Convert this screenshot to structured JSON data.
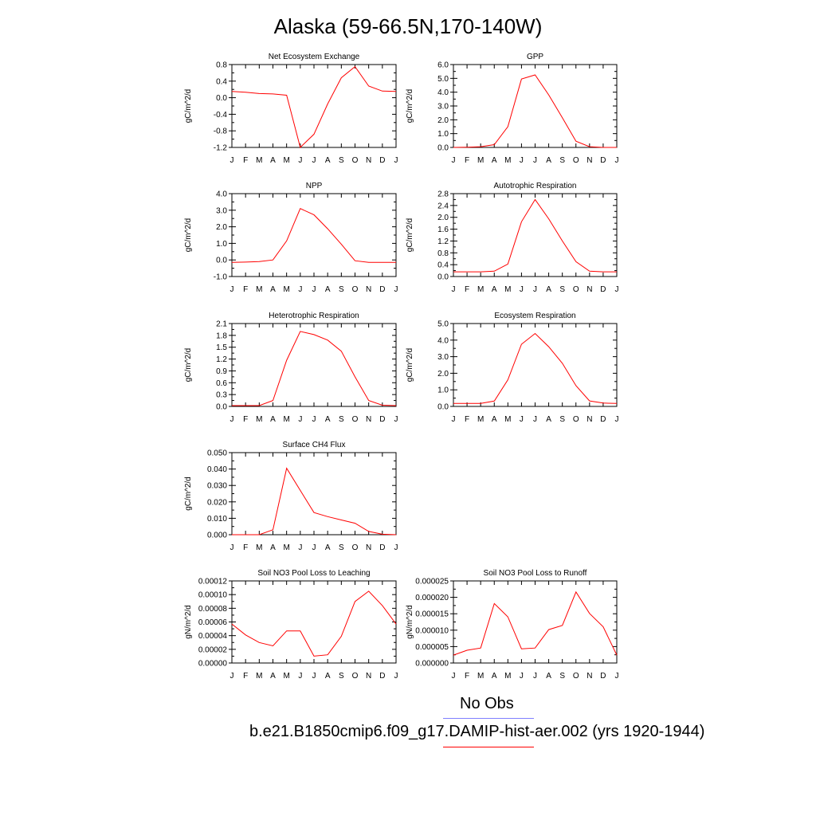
{
  "title": "Alaska (59-66.5N,170-140W)",
  "legend": {
    "obs_label": "No Obs",
    "obs_color": "#8080ff",
    "model_label": "b.e21.B1850cmip6.f09_g17.DAMIP-hist-aer.002 (yrs 1920-1944)",
    "model_color": "#ff0000"
  },
  "chart_data": [
    {
      "type": "line",
      "title": "Net Ecosystem Exchange",
      "ylabel": "gC/m^2/d",
      "x": [
        "J",
        "F",
        "M",
        "A",
        "M",
        "J",
        "J",
        "A",
        "S",
        "O",
        "N",
        "D",
        "J"
      ],
      "ylim": [
        -1.2,
        0.8
      ],
      "yticks": [
        "-1.2",
        "-0.8",
        "-0.4",
        "0.0",
        "0.4",
        "0.8"
      ],
      "series": [
        {
          "values": [
            0.15,
            0.13,
            0.1,
            0.09,
            0.06,
            -1.2,
            -0.88,
            -0.15,
            0.48,
            0.75,
            0.28,
            0.16,
            0.15
          ]
        }
      ]
    },
    {
      "type": "line",
      "title": "GPP",
      "ylabel": "gC/m^2/d",
      "x": [
        "J",
        "F",
        "M",
        "A",
        "M",
        "J",
        "J",
        "A",
        "S",
        "O",
        "N",
        "D",
        "J"
      ],
      "ylim": [
        0.0,
        6.0
      ],
      "yticks": [
        "0.0",
        "1.0",
        "2.0",
        "3.0",
        "4.0",
        "5.0",
        "6.0"
      ],
      "series": [
        {
          "values": [
            0.0,
            0.02,
            0.05,
            0.2,
            1.5,
            4.95,
            5.25,
            3.8,
            2.15,
            0.45,
            0.05,
            0.0,
            0.0
          ]
        }
      ]
    },
    {
      "type": "line",
      "title": "NPP",
      "ylabel": "gC/m^2/d",
      "x": [
        "J",
        "F",
        "M",
        "A",
        "M",
        "J",
        "J",
        "A",
        "S",
        "O",
        "N",
        "D",
        "J"
      ],
      "ylim": [
        -1.0,
        4.0
      ],
      "yticks": [
        "-1.0",
        "0.0",
        "1.0",
        "2.0",
        "3.0",
        "4.0"
      ],
      "series": [
        {
          "values": [
            -0.15,
            -0.13,
            -0.1,
            0.0,
            1.15,
            3.1,
            2.72,
            1.88,
            0.95,
            -0.05,
            -0.15,
            -0.15,
            -0.15
          ]
        }
      ]
    },
    {
      "type": "line",
      "title": "Autotrophic Respiration",
      "ylabel": "gC/m^2/d",
      "x": [
        "J",
        "F",
        "M",
        "A",
        "M",
        "J",
        "J",
        "A",
        "S",
        "O",
        "N",
        "D",
        "J"
      ],
      "ylim": [
        0.0,
        2.8
      ],
      "yticks": [
        "0.0",
        "0.4",
        "0.8",
        "1.2",
        "1.6",
        "2.0",
        "2.4",
        "2.8"
      ],
      "series": [
        {
          "values": [
            0.16,
            0.16,
            0.16,
            0.18,
            0.42,
            1.85,
            2.6,
            1.95,
            1.2,
            0.5,
            0.18,
            0.16,
            0.16
          ]
        }
      ]
    },
    {
      "type": "line",
      "title": "Heterotrophic Respiration",
      "ylabel": "gC/m^2/d",
      "x": [
        "J",
        "F",
        "M",
        "A",
        "M",
        "J",
        "J",
        "A",
        "S",
        "O",
        "N",
        "D",
        "J"
      ],
      "ylim": [
        0.0,
        2.1
      ],
      "yticks": [
        "0.0",
        "0.3",
        "0.6",
        "0.9",
        "1.2",
        "1.5",
        "1.8",
        "2.1"
      ],
      "series": [
        {
          "values": [
            0.02,
            0.02,
            0.02,
            0.15,
            1.17,
            1.9,
            1.82,
            1.68,
            1.4,
            0.75,
            0.15,
            0.03,
            0.02
          ]
        }
      ]
    },
    {
      "type": "line",
      "title": "Ecosystem Respiration",
      "ylabel": "gC/m^2/d",
      "x": [
        "J",
        "F",
        "M",
        "A",
        "M",
        "J",
        "J",
        "A",
        "S",
        "O",
        "N",
        "D",
        "J"
      ],
      "ylim": [
        0.0,
        5.0
      ],
      "yticks": [
        "0.0",
        "1.0",
        "2.0",
        "3.0",
        "4.0",
        "5.0"
      ],
      "series": [
        {
          "values": [
            0.18,
            0.18,
            0.18,
            0.32,
            1.6,
            3.75,
            4.4,
            3.6,
            2.6,
            1.25,
            0.33,
            0.2,
            0.18
          ]
        }
      ]
    },
    {
      "type": "line",
      "title": "Surface CH4 Flux",
      "ylabel": "gC/m^2/d",
      "x": [
        "J",
        "F",
        "M",
        "A",
        "M",
        "J",
        "J",
        "A",
        "S",
        "O",
        "N",
        "D",
        "J"
      ],
      "ylim": [
        0.0,
        0.05
      ],
      "yticks": [
        "0.000",
        "0.010",
        "0.020",
        "0.030",
        "0.040",
        "0.050"
      ],
      "series": [
        {
          "values": [
            0.0,
            0.0,
            0.0,
            0.003,
            0.0405,
            0.027,
            0.0135,
            0.011,
            0.009,
            0.007,
            0.002,
            0.0003,
            0.0
          ]
        }
      ]
    },
    {
      "type": "line",
      "title": "Soil NO3 Pool Loss to Leaching",
      "ylabel": "gN/m^2/d",
      "x": [
        "J",
        "F",
        "M",
        "A",
        "M",
        "J",
        "J",
        "A",
        "S",
        "O",
        "N",
        "D",
        "J"
      ],
      "ylim": [
        0.0,
        0.00012
      ],
      "yticks": [
        "0.00000",
        "0.00002",
        "0.00004",
        "0.00006",
        "0.00008",
        "0.00010",
        "0.00012"
      ],
      "series": [
        {
          "values": [
            5.7e-05,
            4.1e-05,
            3e-05,
            2.5e-05,
            4.7e-05,
            4.7e-05,
            1e-05,
            1.2e-05,
            3.9e-05,
            9e-05,
            0.000105,
            8.4e-05,
            5.7e-05
          ]
        }
      ]
    },
    {
      "type": "line",
      "title": "Soil NO3 Pool Loss to Runoff",
      "ylabel": "gN/m^2/d",
      "x": [
        "J",
        "F",
        "M",
        "A",
        "M",
        "J",
        "J",
        "A",
        "S",
        "O",
        "N",
        "D",
        "J"
      ],
      "ylim": [
        0.0,
        2.9e-05
      ],
      "yticks": [
        "0.000000",
        "0.000005",
        "0.000010",
        "0.000015",
        "0.000020",
        "0.000025"
      ],
      "series": [
        {
          "values": [
            2.8e-06,
            4.5e-06,
            5.3e-06,
            2.1e-05,
            1.63e-05,
            5e-06,
            5.3e-06,
            1.18e-05,
            1.33e-05,
            2.51e-05,
            1.75e-05,
            1.28e-05,
            2.8e-06
          ]
        }
      ]
    }
  ]
}
